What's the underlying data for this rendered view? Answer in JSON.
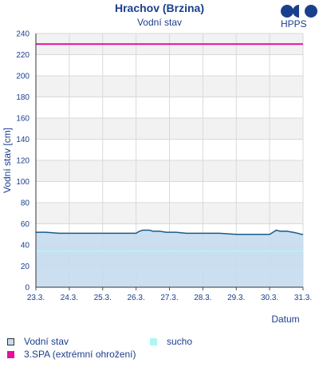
{
  "header": {
    "title": "Hrachov (Brzina)",
    "subtitle": "Vodní stav",
    "logo_text": "HPPS"
  },
  "colors": {
    "axis_text": "#1a3f8e",
    "water_line": "#1a5a8a",
    "water_fill": "#c5dcf0",
    "sucho": "#aef5f5",
    "spa3": "#e0119e",
    "band": "#f2f2f2",
    "grid": "#d9d9d9"
  },
  "chart_data": {
    "type": "area",
    "title": "Hrachov (Brzina)",
    "subtitle": "Vodní stav",
    "xlabel": "Datum",
    "ylabel": "Vodní stav [cm]",
    "ylim": [
      0,
      240
    ],
    "yticks": [
      0,
      20,
      40,
      60,
      80,
      100,
      120,
      140,
      160,
      180,
      200,
      220,
      240
    ],
    "x_tick_labels": [
      "23.3.",
      "24.3.",
      "25.3.",
      "26.3.",
      "27.3.",
      "28.3.",
      "29.3.",
      "30.3.",
      "31.3."
    ],
    "xlim_days": [
      0,
      8
    ],
    "grid": true,
    "legend_position": "bottom",
    "series": [
      {
        "name": "Vodní stav",
        "kind": "area",
        "x": [
          0,
          0.3,
          0.7,
          1,
          1.5,
          2,
          2.5,
          3,
          3.05,
          3.1,
          3.2,
          3.3,
          3.4,
          3.5,
          3.7,
          3.9,
          4,
          4.2,
          4.5,
          4.8,
          5,
          5.5,
          6,
          6.5,
          7,
          7.1,
          7.2,
          7.3,
          7.5,
          7.7,
          7.85,
          7.95,
          8
        ],
        "values": [
          52,
          52,
          51,
          51,
          51,
          51,
          51,
          51,
          52,
          53,
          54,
          54,
          54,
          53,
          53,
          52,
          52,
          52,
          51,
          51,
          51,
          51,
          50,
          50,
          50,
          52,
          54,
          53,
          53,
          52,
          51,
          50,
          50
        ]
      },
      {
        "name": "sucho",
        "kind": "threshold",
        "value": 34
      },
      {
        "name": "3.SPA (extrémní ohrožení)",
        "kind": "threshold",
        "value": 230
      }
    ]
  },
  "legend": [
    {
      "label": "Vodní stav",
      "swatch": "water"
    },
    {
      "label": "sucho",
      "swatch": "sucho"
    },
    {
      "label": "3.SPA (extrémní ohrožení)",
      "swatch": "spa3"
    }
  ]
}
